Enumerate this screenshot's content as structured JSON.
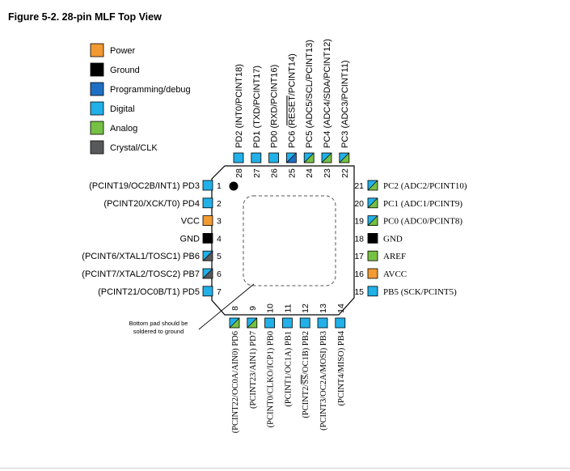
{
  "title": "Figure 5-2.  28-pin MLF Top View",
  "colors": {
    "power": "#f39a33",
    "ground": "#000000",
    "programming": "#1e6fc4",
    "digital": "#21b0e8",
    "analog": "#76c043",
    "crystal": "#58595b"
  },
  "legend": [
    {
      "key": "power",
      "label": "Power"
    },
    {
      "key": "ground",
      "label": "Ground"
    },
    {
      "key": "programming",
      "label": "Programming/debug"
    },
    {
      "key": "digital",
      "label": "Digital"
    },
    {
      "key": "analog",
      "label": "Analog"
    },
    {
      "key": "crystal",
      "label": "Crystal/CLK"
    }
  ],
  "pins_left": [
    {
      "num": "1",
      "label": "(PCINT19/OC2B/INT1) PD3",
      "color": "digital"
    },
    {
      "num": "2",
      "label": "(PCINT20/XCK/T0) PD4",
      "color": "digital"
    },
    {
      "num": "3",
      "label": "VCC",
      "color": "power"
    },
    {
      "num": "4",
      "label": "GND",
      "color": "ground"
    },
    {
      "num": "5",
      "label": "(PCINT6/XTAL1/TOSC1) PB6",
      "color": "digital",
      "color2": "crystal"
    },
    {
      "num": "6",
      "label": "(PCINT7/XTAL2/TOSC2) PB7",
      "color": "digital",
      "color2": "crystal"
    },
    {
      "num": "7",
      "label": "(PCINT21/OC0B/T1) PD5",
      "color": "digital"
    }
  ],
  "pins_right": [
    {
      "num": "21",
      "label": "PC2 (ADC2/PCINT10)",
      "color": "digital",
      "color2": "analog"
    },
    {
      "num": "20",
      "label": "PC1 (ADC1/PCINT9)",
      "color": "digital",
      "color2": "analog"
    },
    {
      "num": "19",
      "label": "PC0 (ADC0/PCINT8)",
      "color": "digital",
      "color2": "analog"
    },
    {
      "num": "18",
      "label": "GND",
      "color": "ground"
    },
    {
      "num": "17",
      "label": "AREF",
      "color": "analog"
    },
    {
      "num": "16",
      "label": "AVCC",
      "color": "power"
    },
    {
      "num": "15",
      "label": "PB5 (SCK/PCINT5)",
      "color": "digital"
    }
  ],
  "pins_top": [
    {
      "num": "28",
      "label": "PD2 (INT0/PCINT18)",
      "color": "digital"
    },
    {
      "num": "27",
      "label": "PD1 (TXD/PCINT17)",
      "color": "digital"
    },
    {
      "num": "26",
      "label": "PD0 (RXD/PCINT16)",
      "color": "digital"
    },
    {
      "num": "25",
      "label": "PC6 (RESET/PCINT14)",
      "color": "digital",
      "color2": "programming",
      "overline": "RESET"
    },
    {
      "num": "24",
      "label": "PC5 (ADC5/SCL/PCINT13)",
      "color": "digital",
      "color2": "analog"
    },
    {
      "num": "23",
      "label": "PC4 (ADC4/SDA/PCINT12)",
      "color": "digital",
      "color2": "analog"
    },
    {
      "num": "22",
      "label": "PC3 (ADC3/PCINT11)",
      "color": "digital",
      "color2": "analog"
    }
  ],
  "pins_bottom": [
    {
      "num": "8",
      "label": "(PCINT22/OC0A/AIN0) PD6",
      "color": "digital",
      "color2": "analog"
    },
    {
      "num": "9",
      "label": "(PCINT23/AIN1) PD7",
      "color": "digital",
      "color2": "analog"
    },
    {
      "num": "10",
      "label": "(PCINT0/CLKO/ICP1) PB0",
      "color": "digital"
    },
    {
      "num": "11",
      "label": "(PCINT1/OC1A) PB1",
      "color": "digital"
    },
    {
      "num": "12",
      "label": "(PCINT2/SS/OC1B) PB2",
      "color": "digital",
      "overline": "SS"
    },
    {
      "num": "13",
      "label": "(PCINT3/OC2A/MOSI) PB3",
      "color": "digital"
    },
    {
      "num": "14",
      "label": "(PCINT4/MISO) PB4",
      "color": "digital"
    }
  ],
  "bottom_pad_note": [
    "Bottom pad should be",
    "soldered to ground"
  ]
}
